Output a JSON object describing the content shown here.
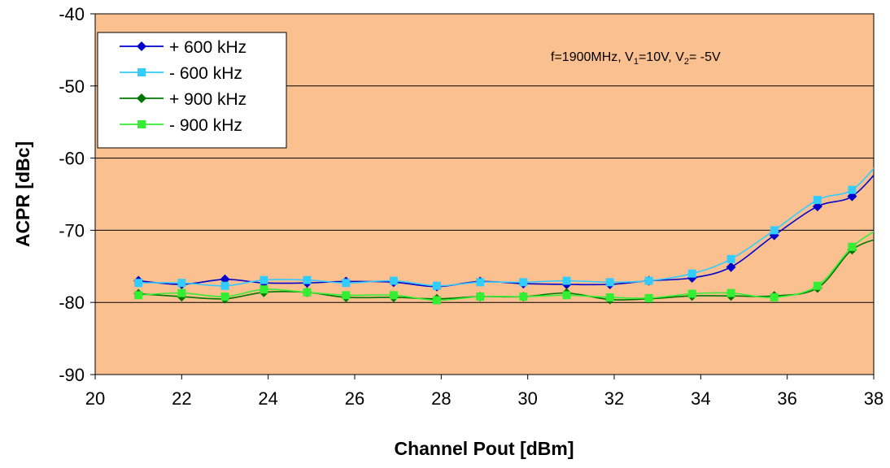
{
  "chart_data": {
    "type": "line",
    "xlabel": "Channel Pout [dBm]",
    "ylabel": "ACPR [dBc]",
    "xlim": [
      20,
      38
    ],
    "ylim": [
      -90,
      -40
    ],
    "xticks": [
      20,
      22,
      24,
      26,
      28,
      30,
      32,
      34,
      36,
      38
    ],
    "xtick_labels": [
      "20",
      "22",
      "24",
      "26",
      "28",
      "30",
      "32",
      "34",
      "36",
      "38"
    ],
    "yticks": [
      -40,
      -50,
      -60,
      -70,
      -80,
      -90
    ],
    "ytick_labels": [
      "-40",
      "-50",
      "-60",
      "-70",
      "-80",
      "-90"
    ],
    "grid": "horizontal",
    "plot_background": "#FAC090",
    "legend_position": "top-left",
    "annotation": {
      "main": "f=1900MHz, V",
      "sub1": "1",
      "mid1": "=10V, V",
      "sub2": "2",
      "mid2": "= -5V"
    },
    "series": [
      {
        "name": "+ 600 kHz",
        "color": "#0000CC",
        "marker": "diamond",
        "x": [
          21.0,
          22.0,
          23.0,
          23.9,
          24.9,
          25.8,
          26.9,
          27.9,
          28.9,
          29.9,
          30.9,
          31.9,
          32.8,
          33.8,
          34.7,
          35.7,
          36.7,
          37.5,
          38.2
        ],
        "y": [
          -77.0,
          -77.5,
          -76.8,
          -77.3,
          -77.3,
          -77.1,
          -77.2,
          -77.8,
          -77.1,
          -77.4,
          -77.5,
          -77.5,
          -77.0,
          -76.6,
          -75.1,
          -70.7,
          -66.7,
          -65.3,
          -61.0
        ]
      },
      {
        "name": "- 600 kHz",
        "color": "#33CCFF",
        "marker": "square",
        "x": [
          21.0,
          22.0,
          23.0,
          23.9,
          24.9,
          25.8,
          26.9,
          27.9,
          28.9,
          29.9,
          30.9,
          31.9,
          32.8,
          33.8,
          34.7,
          35.7,
          36.7,
          37.5,
          38.2
        ],
        "y": [
          -77.3,
          -77.3,
          -77.7,
          -76.9,
          -76.9,
          -77.3,
          -77.0,
          -77.7,
          -77.2,
          -77.2,
          -77.0,
          -77.2,
          -77.0,
          -76.0,
          -74.0,
          -70.0,
          -65.8,
          -64.4,
          -60.0
        ]
      },
      {
        "name": "+ 900 kHz",
        "color": "#007700",
        "marker": "diamond",
        "x": [
          21.0,
          22.0,
          23.0,
          23.9,
          24.9,
          25.8,
          26.9,
          27.9,
          28.9,
          29.9,
          30.9,
          31.9,
          32.8,
          33.8,
          34.7,
          35.7,
          36.7,
          37.5,
          38.2
        ],
        "y": [
          -78.8,
          -79.2,
          -79.5,
          -78.6,
          -78.6,
          -79.3,
          -79.3,
          -79.5,
          -79.2,
          -79.2,
          -78.7,
          -79.6,
          -79.5,
          -79.1,
          -79.1,
          -79.1,
          -78.0,
          -72.7,
          -71.0
        ]
      },
      {
        "name": "- 900 kHz",
        "color": "#33EE33",
        "marker": "square",
        "x": [
          21.0,
          22.0,
          23.0,
          23.9,
          24.9,
          25.8,
          26.9,
          27.9,
          28.9,
          29.9,
          30.9,
          31.9,
          32.8,
          33.8,
          34.7,
          35.7,
          36.7,
          37.5,
          38.2
        ],
        "y": [
          -79.0,
          -78.7,
          -79.2,
          -78.2,
          -78.6,
          -79.0,
          -79.0,
          -79.7,
          -79.2,
          -79.2,
          -79.0,
          -79.3,
          -79.4,
          -78.8,
          -78.7,
          -79.3,
          -77.7,
          -72.3,
          -69.5
        ]
      }
    ]
  }
}
